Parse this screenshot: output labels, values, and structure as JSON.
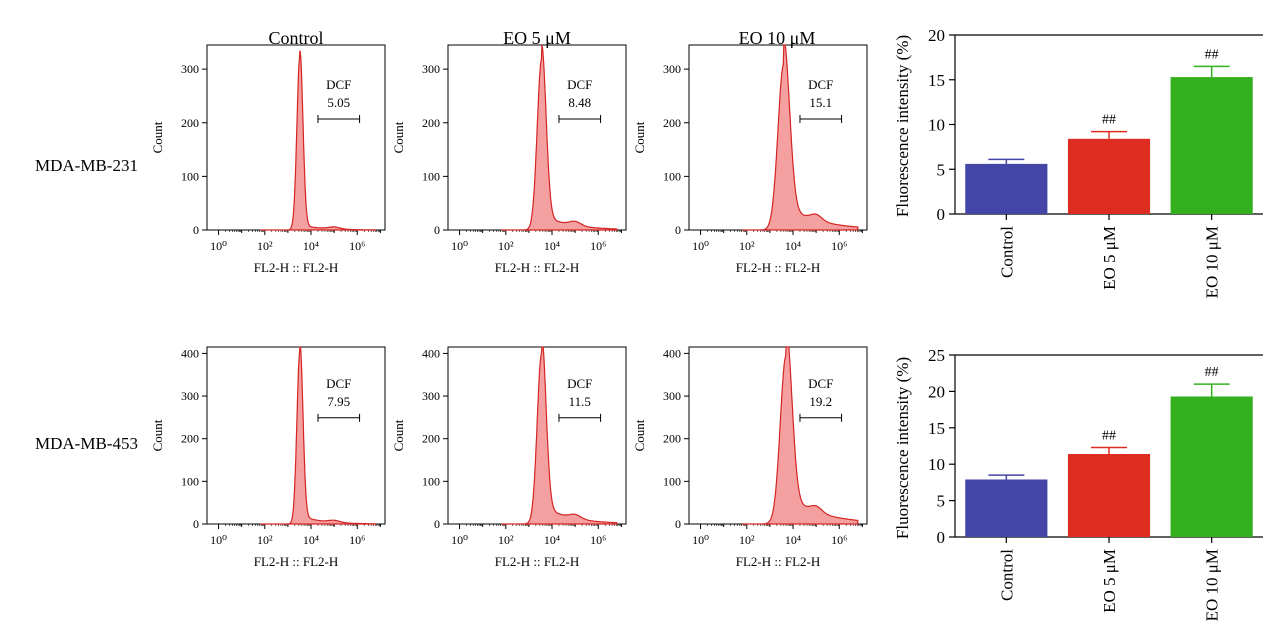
{
  "conditions": [
    "Control",
    "EO 5 μM",
    "EO 10 μM"
  ],
  "colors": {
    "hist_line": "#d42424",
    "hist_fill": "#f4a0a0",
    "bar_control": "#4346a6",
    "bar_eo5": "#de2c20",
    "bar_eo10": "#34b01e"
  },
  "histograms": {
    "xlabel": "FL2-H :: FL2-H",
    "ylabel": "Count",
    "xtick_labels": [
      "10⁰",
      "10²",
      "10⁴",
      "10⁶"
    ],
    "gate_label": "DCF"
  },
  "chart_data": [
    {
      "type": "histogram",
      "row": "MDA-MB-231",
      "ytick_labels": [
        "0",
        "100",
        "200",
        "300"
      ],
      "ylim": [
        0,
        345
      ],
      "panels": [
        {
          "title": "Control",
          "gate_value": "5.05",
          "peak_log10": 3.52,
          "peak_count": 325
        },
        {
          "title": "EO 5 μM",
          "gate_value": "8.48",
          "peak_log10": 3.55,
          "peak_count": 318
        },
        {
          "title": "EO 10 μM",
          "gate_value": "15.1",
          "peak_log10": 3.6,
          "peak_count": 310
        }
      ]
    },
    {
      "type": "histogram",
      "row": "MDA-MB-453",
      "ytick_labels": [
        "0",
        "100",
        "200",
        "300",
        "400"
      ],
      "ylim": [
        0,
        415
      ],
      "panels": [
        {
          "title": "Control",
          "gate_value": "7.95",
          "peak_log10": 3.52,
          "peak_count": 405
        },
        {
          "title": "EO 5 μM",
          "gate_value": "11.5",
          "peak_log10": 3.55,
          "peak_count": 400
        },
        {
          "title": "EO 10 μM",
          "gate_value": "19.2",
          "peak_log10": 3.7,
          "peak_count": 395
        }
      ]
    },
    {
      "type": "bar",
      "row": "MDA-MB-231",
      "ylabel": "Fluorescence intensity (%)",
      "categories": [
        "Control",
        "EO 5 μM",
        "EO 10 μM"
      ],
      "values": [
        5.6,
        8.4,
        15.3
      ],
      "errors": [
        0.5,
        0.8,
        1.2
      ],
      "annotations": [
        "",
        "##",
        "##"
      ],
      "yticks": [
        0,
        5,
        10,
        15,
        20
      ],
      "ylim": [
        0,
        20
      ]
    },
    {
      "type": "bar",
      "row": "MDA-MB-453",
      "ylabel": "Fluorescence intensity (%)",
      "categories": [
        "Control",
        "EO 5 μM",
        "EO 10 μM"
      ],
      "values": [
        7.9,
        11.4,
        19.3
      ],
      "errors": [
        0.6,
        0.9,
        1.7
      ],
      "annotations": [
        "",
        "##",
        "##"
      ],
      "yticks": [
        0,
        5,
        10,
        15,
        20,
        25
      ],
      "ylim": [
        0,
        25
      ]
    }
  ]
}
